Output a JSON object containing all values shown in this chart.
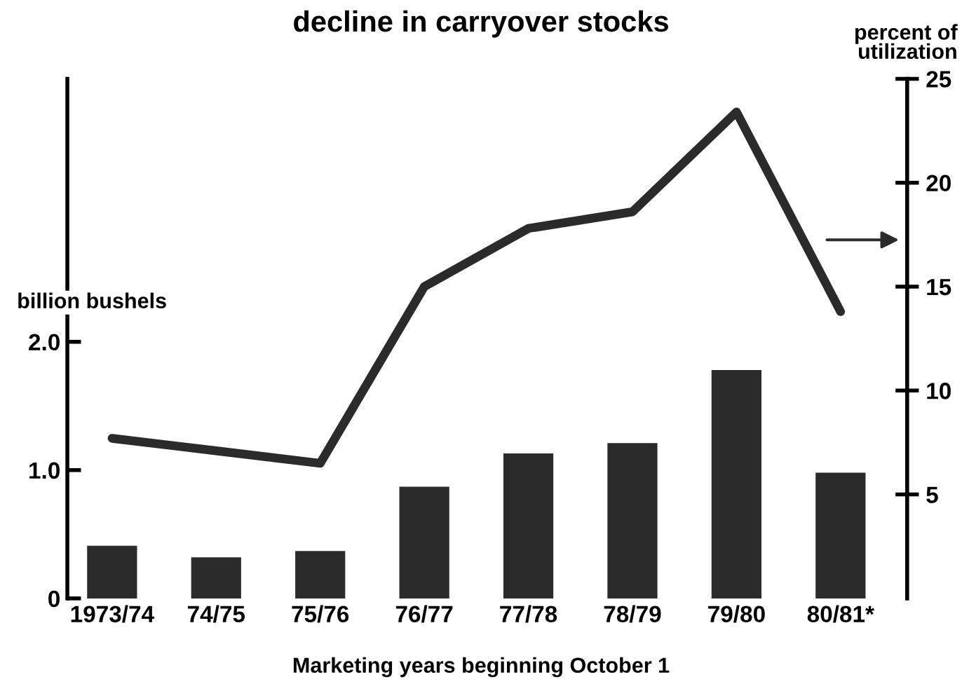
{
  "chart_data": {
    "type": "bar",
    "title": "decline in carryover stocks",
    "xlabel": "Marketing years beginning October 1",
    "ylabel": "billion bushels",
    "y2label": "percent of\nutilization",
    "categories": [
      "1973/74",
      "74/75",
      "75/76",
      "76/77",
      "77/78",
      "78/79",
      "79/80",
      "80/81*"
    ],
    "series": [
      {
        "color": "#2b2b2b",
        "values": [
          0.41,
          0.32,
          0.37,
          0.87,
          1.13,
          1.21,
          1.78,
          0.98
        ]
      },
      {
        "type": "line",
        "axis": "y2",
        "color": "#2b2b2b",
        "values": [
          7.7,
          7.1,
          6.5,
          15.0,
          17.8,
          18.6,
          23.4,
          13.8
        ]
      }
    ],
    "ylim": [
      0,
      4.05
    ],
    "yticks": [
      0,
      {
        "value": 1,
        "label": "1.0"
      },
      {
        "value": 2,
        "label": "2.0"
      }
    ],
    "y2lim": [
      0,
      25
    ],
    "y2ticks": [
      5,
      10,
      15,
      20,
      25
    ],
    "grid": false,
    "legend": false,
    "marker": "none",
    "line_style": "solid"
  }
}
